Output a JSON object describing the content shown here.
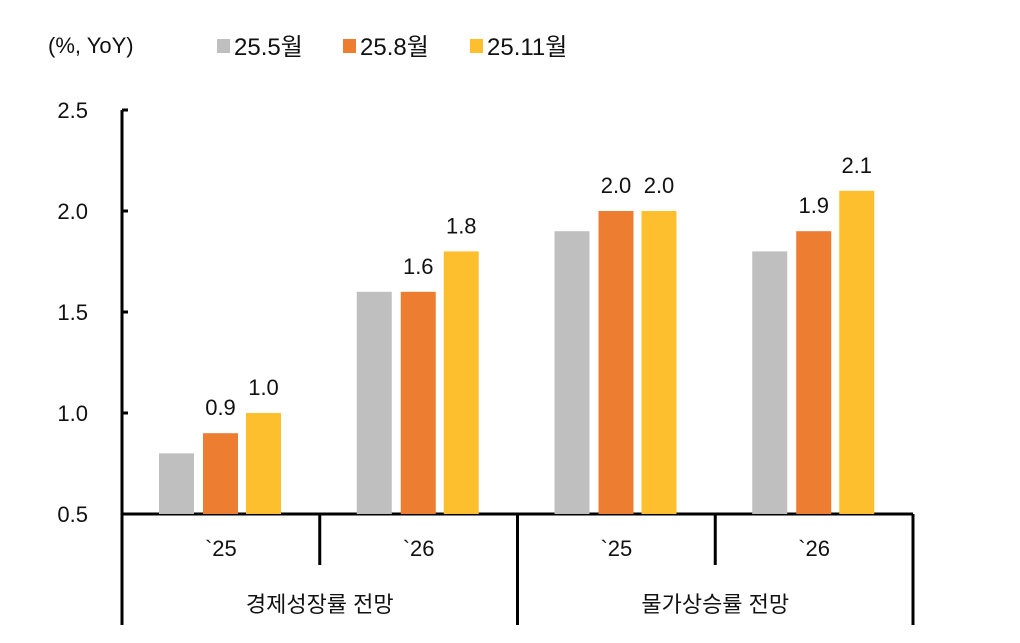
{
  "chart_data": {
    "type": "bar",
    "unit_label": "(%, YoY)",
    "ylim": [
      0.5,
      2.5
    ],
    "yticks": [
      "0.5",
      "1.0",
      "1.5",
      "2.0",
      "2.5"
    ],
    "grid": false,
    "legend_position": "top",
    "categories": [
      "`25",
      "`26",
      "`25",
      "`26"
    ],
    "category_groups": [
      {
        "label": "경제성장률 전망",
        "span": 2
      },
      {
        "label": "물가상승률 전망",
        "span": 2
      }
    ],
    "series": [
      {
        "name": "25.5월",
        "color": "#BFBFBF",
        "values": [
          0.8,
          1.6,
          1.9,
          1.8
        ],
        "labels": [
          "",
          "",
          "",
          ""
        ]
      },
      {
        "name": "25.8월",
        "color": "#ED7D31",
        "values": [
          0.9,
          1.6,
          2.0,
          1.9
        ],
        "labels": [
          "0.9",
          "1.6",
          "2.0",
          "1.9"
        ]
      },
      {
        "name": "25.11월",
        "color": "#FDBF2D",
        "values": [
          1.0,
          1.8,
          2.0,
          2.1
        ],
        "labels": [
          "1.0",
          "1.8",
          "2.0",
          "2.1"
        ]
      }
    ]
  }
}
